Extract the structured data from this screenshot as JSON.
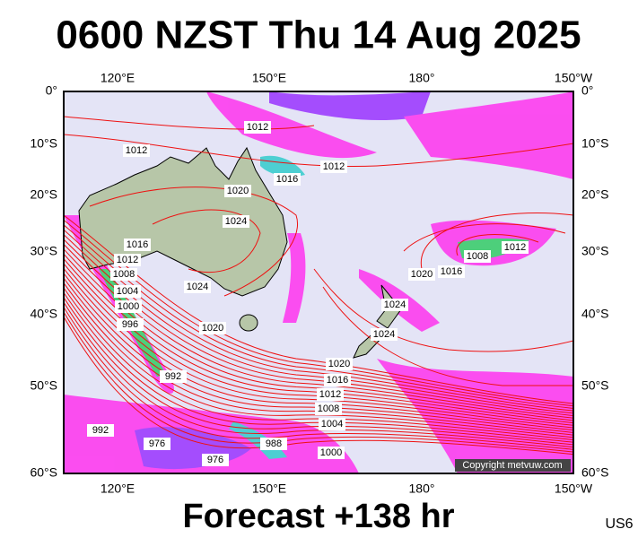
{
  "title": "0600 NZST Thu 14 Aug 2025",
  "footer": "Forecast +138 hr",
  "code": "US6",
  "copyright": "Copyright metvuw.com",
  "lon_labels": [
    "120°E",
    "150°E",
    "180°",
    "150°W"
  ],
  "lat_labels": [
    "0°",
    "10°S",
    "20°S",
    "30°S",
    "40°S",
    "50°S",
    "60°S"
  ],
  "isobar_labels": [
    "1012",
    "1012",
    "1012",
    "1016",
    "1020",
    "1024",
    "1016",
    "1012",
    "1008",
    "1004",
    "1000",
    "996",
    "1024",
    "1020",
    "1008",
    "1012",
    "1016",
    "1020",
    "1024",
    "1024",
    "1020",
    "1016",
    "1012",
    "1008",
    "1004",
    "1000",
    "992",
    "988",
    "992",
    "976",
    "976"
  ]
}
